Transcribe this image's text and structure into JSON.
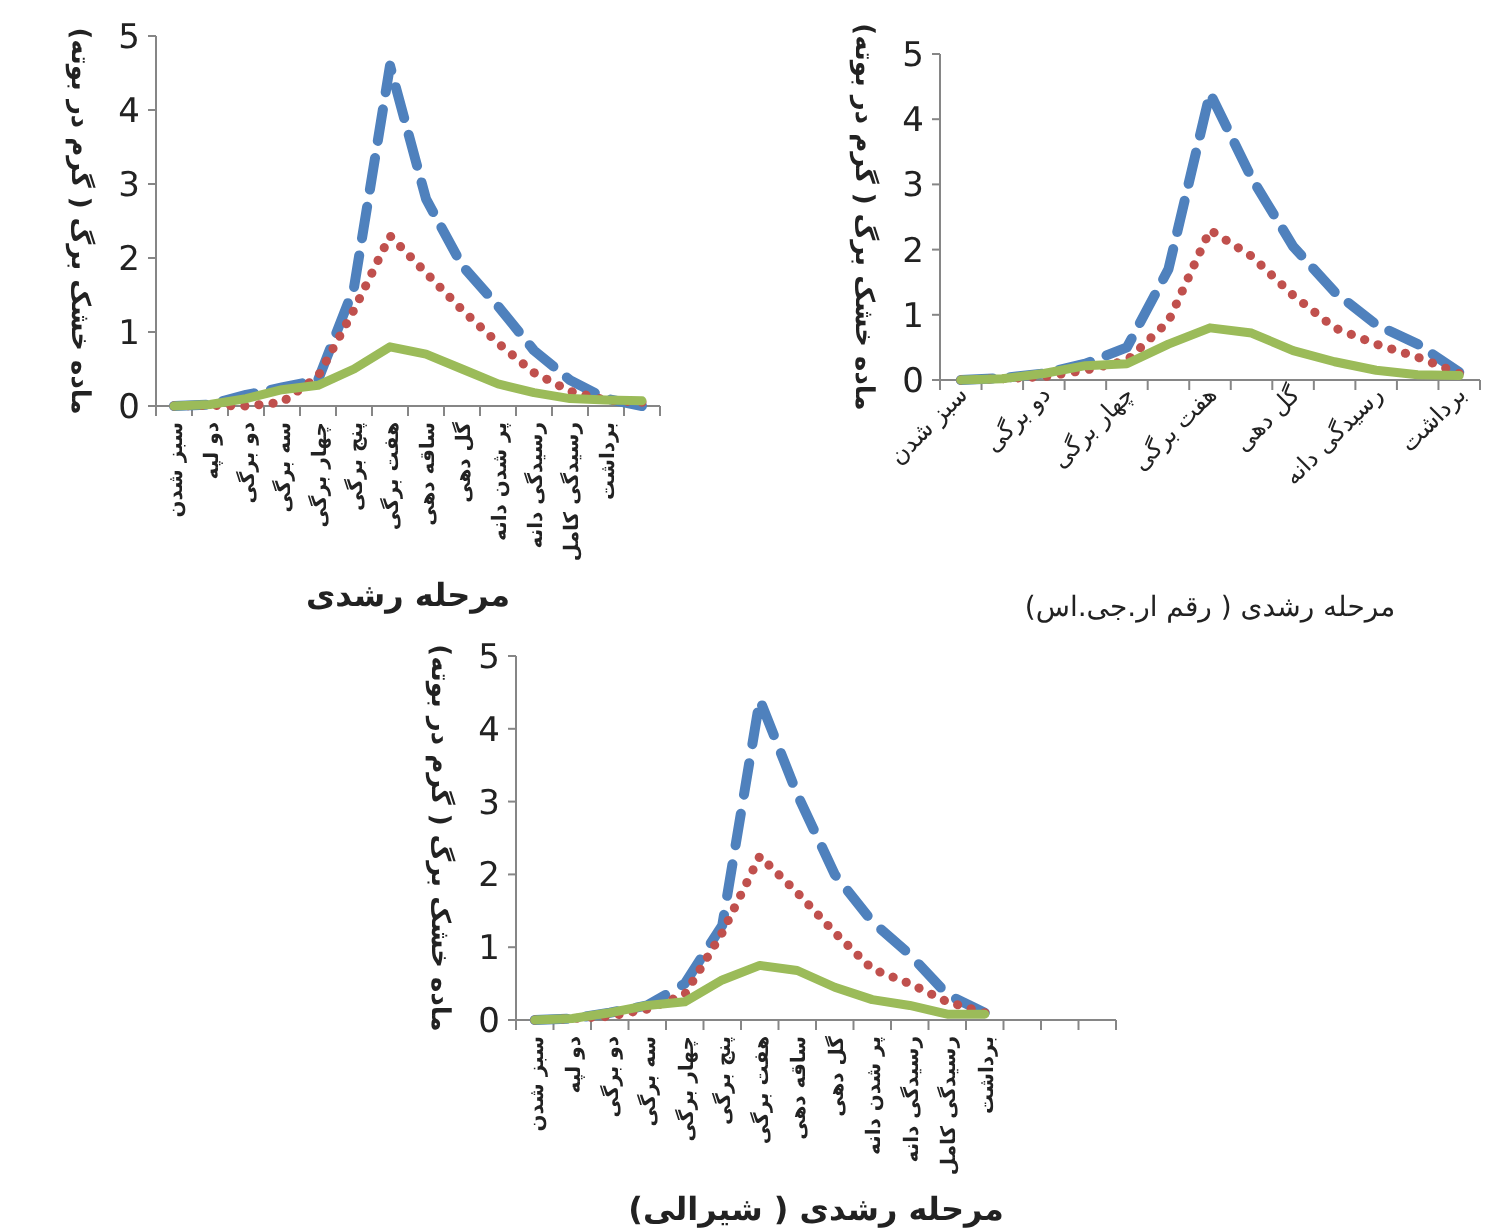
{
  "chart_data": [
    {
      "type": "line",
      "ylabel": "ماده خشک برگ ( گرم در بوته)",
      "xlabel": "مرحله رشدی",
      "categories": [
        "سبز شدن",
        "دو لپه",
        "دو برگی",
        "سه برگی",
        "چهار برگی",
        "پنج برگی",
        "هفت برگی",
        "ساقه دهی",
        "گل دهی",
        "پر شدن دانه",
        "رسیدگی دانه",
        "رسیدگی کامل",
        "برداشت",
        null
      ],
      "ylim": [
        0,
        5
      ],
      "yticks": [
        0,
        1,
        2,
        3,
        4,
        5
      ],
      "grid": false,
      "series": [
        {
          "color": "#4f81bd",
          "line_style": "dashed",
          "values": [
            0,
            0.02,
            0.15,
            0.25,
            0.35,
            1.6,
            4.6,
            2.8,
            1.9,
            1.35,
            0.75,
            0.35,
            0.1,
            0
          ]
        },
        {
          "color": "#c0504d",
          "line_style": "dotted",
          "values": [
            0,
            0.01,
            0,
            0.05,
            0.4,
            1.3,
            2.3,
            1.8,
            1.3,
            0.85,
            0.45,
            0.2,
            0.08,
            0.05
          ]
        },
        {
          "color": "#9bbb59",
          "line_style": "solid",
          "values": [
            0,
            0.02,
            0.1,
            0.22,
            0.28,
            0.5,
            0.8,
            0.7,
            0.5,
            0.3,
            0.18,
            0.1,
            0.08,
            0.07
          ]
        }
      ]
    },
    {
      "type": "line",
      "ylabel": "ماده خشک برگ ( گرم در بوته)",
      "xlabel": "مرحله رشدی ( رقم ار.جی.اس)",
      "categories": [
        "سبز شدن",
        null,
        "دو برگی",
        null,
        "چهار برگی",
        null,
        "هفت برگی",
        null,
        "گل دهی",
        null,
        "رسیدگی دانه",
        null,
        "برداشت"
      ],
      "ylim": [
        0,
        5
      ],
      "yticks": [
        0,
        1,
        2,
        3,
        4,
        5
      ],
      "grid": false,
      "series": [
        {
          "color": "#4f81bd",
          "line_style": "dashed",
          "values": [
            0,
            0.03,
            0.1,
            0.25,
            0.5,
            1.7,
            4.4,
            3.1,
            2.05,
            1.35,
            0.85,
            0.55,
            0.12
          ]
        },
        {
          "color": "#c0504d",
          "line_style": "dotted",
          "values": [
            0,
            0.02,
            0.05,
            0.15,
            0.3,
            0.9,
            2.3,
            1.9,
            1.3,
            0.8,
            0.55,
            0.35,
            0.1
          ]
        },
        {
          "color": "#9bbb59",
          "line_style": "solid",
          "values": [
            0,
            0.02,
            0.1,
            0.22,
            0.25,
            0.55,
            0.8,
            0.72,
            0.45,
            0.28,
            0.15,
            0.08,
            0.07
          ]
        }
      ]
    },
    {
      "type": "line",
      "ylabel": "ماده خشک برگ ( گرم در بوته)",
      "xlabel": "مرحله رشدی ( شیرالی)",
      "categories": [
        "سبز شدن",
        "دو لپه",
        "دو برگی",
        "سه برگی",
        "چهار برگی",
        "پنج برگی",
        "هفت برگی",
        "ساقه دهی",
        "گل دهی",
        "پر شدن دانه",
        "رسیدگی دانه",
        "رسیدگی کامل",
        "برداشت",
        null,
        null,
        null
      ],
      "ylim": [
        0,
        5
      ],
      "yticks": [
        0,
        1,
        2,
        3,
        4,
        5
      ],
      "grid": false,
      "series": [
        {
          "color": "#4f81bd",
          "line_style": "dashed",
          "values": [
            0,
            0.02,
            0.1,
            0.2,
            0.5,
            1.3,
            4.4,
            3.1,
            2.0,
            1.35,
            0.9,
            0.35,
            0.1,
            null,
            null,
            null
          ]
        },
        {
          "color": "#c0504d",
          "line_style": "dotted",
          "values": [
            0,
            0.02,
            0.05,
            0.15,
            0.35,
            1.2,
            2.25,
            1.75,
            1.2,
            0.7,
            0.5,
            0.25,
            0.1,
            null,
            null,
            null
          ]
        },
        {
          "color": "#9bbb59",
          "line_style": "solid",
          "values": [
            0,
            0.02,
            0.1,
            0.2,
            0.25,
            0.55,
            0.75,
            0.68,
            0.45,
            0.28,
            0.2,
            0.08,
            0.08,
            null,
            null,
            null
          ]
        }
      ]
    }
  ]
}
